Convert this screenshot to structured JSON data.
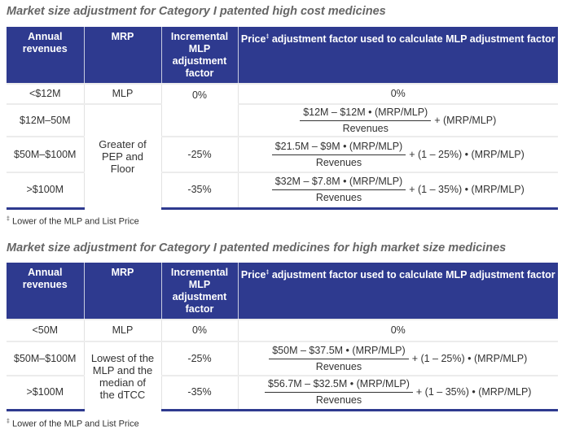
{
  "table1": {
    "title": "Market size adjustment for Category I patented high cost medicines",
    "headers": [
      "Annual revenues",
      "MRP",
      "Incremental MLP adjustment factor",
      "Price",
      "‡",
      "adjustment factor used to calculate MLP adjustment factor"
    ],
    "rows": [
      {
        "revenue": "<$12M",
        "mrp": "MLP",
        "incremental": "0%",
        "factor": "0%"
      },
      {
        "revenue": "$12M–50M",
        "mrp": "Greater of PEP and Floor",
        "num": "$12M – $12M • (MRP/MLP)",
        "den": "Revenues",
        "rest": "+ (MRP/MLP)"
      },
      {
        "revenue": "$50M–$100M",
        "incremental": "-25%",
        "num": "$21.5M – $9M • (MRP/MLP)",
        "den": "Revenues",
        "rest": "+ (1 – 25%) • (MRP/MLP)"
      },
      {
        "revenue": ">$100M",
        "incremental": "-35%",
        "num": "$32M – $7.8M • (MRP/MLP)",
        "den": "Revenues",
        "rest": "+ (1 – 35%) • (MRP/MLP)"
      }
    ],
    "footnote_mark": "‡",
    "footnote": "Lower of the MLP and List Price"
  },
  "table2": {
    "title": "Market size adjustment for Category I patented medicines for high market size medicines",
    "headers": [
      "Annual revenues",
      "MRP",
      "Incremental MLP adjustment factor",
      "Price",
      "‡",
      "adjustment factor used to calculate MLP adjustment factor"
    ],
    "rows": [
      {
        "revenue": "<50M",
        "mrp": "MLP",
        "incremental": "0%",
        "factor": "0%"
      },
      {
        "revenue": "$50M–$100M",
        "mrp": "Lowest of the MLP and the median of the dTCC",
        "incremental": "-25%",
        "num": "$50M – $37.5M • (MRP/MLP)",
        "den": "Revenues",
        "rest": "+ (1 – 25%) • (MRP/MLP)"
      },
      {
        "revenue": ">$100M",
        "incremental": "-35%",
        "num": "$56.7M – $32.5M • (MRP/MLP)",
        "den": "Revenues",
        "rest": "+ (1 – 35%) • (MRP/MLP)"
      }
    ],
    "footnote_mark": "‡",
    "footnote": "Lower of the MLP and List Price"
  }
}
